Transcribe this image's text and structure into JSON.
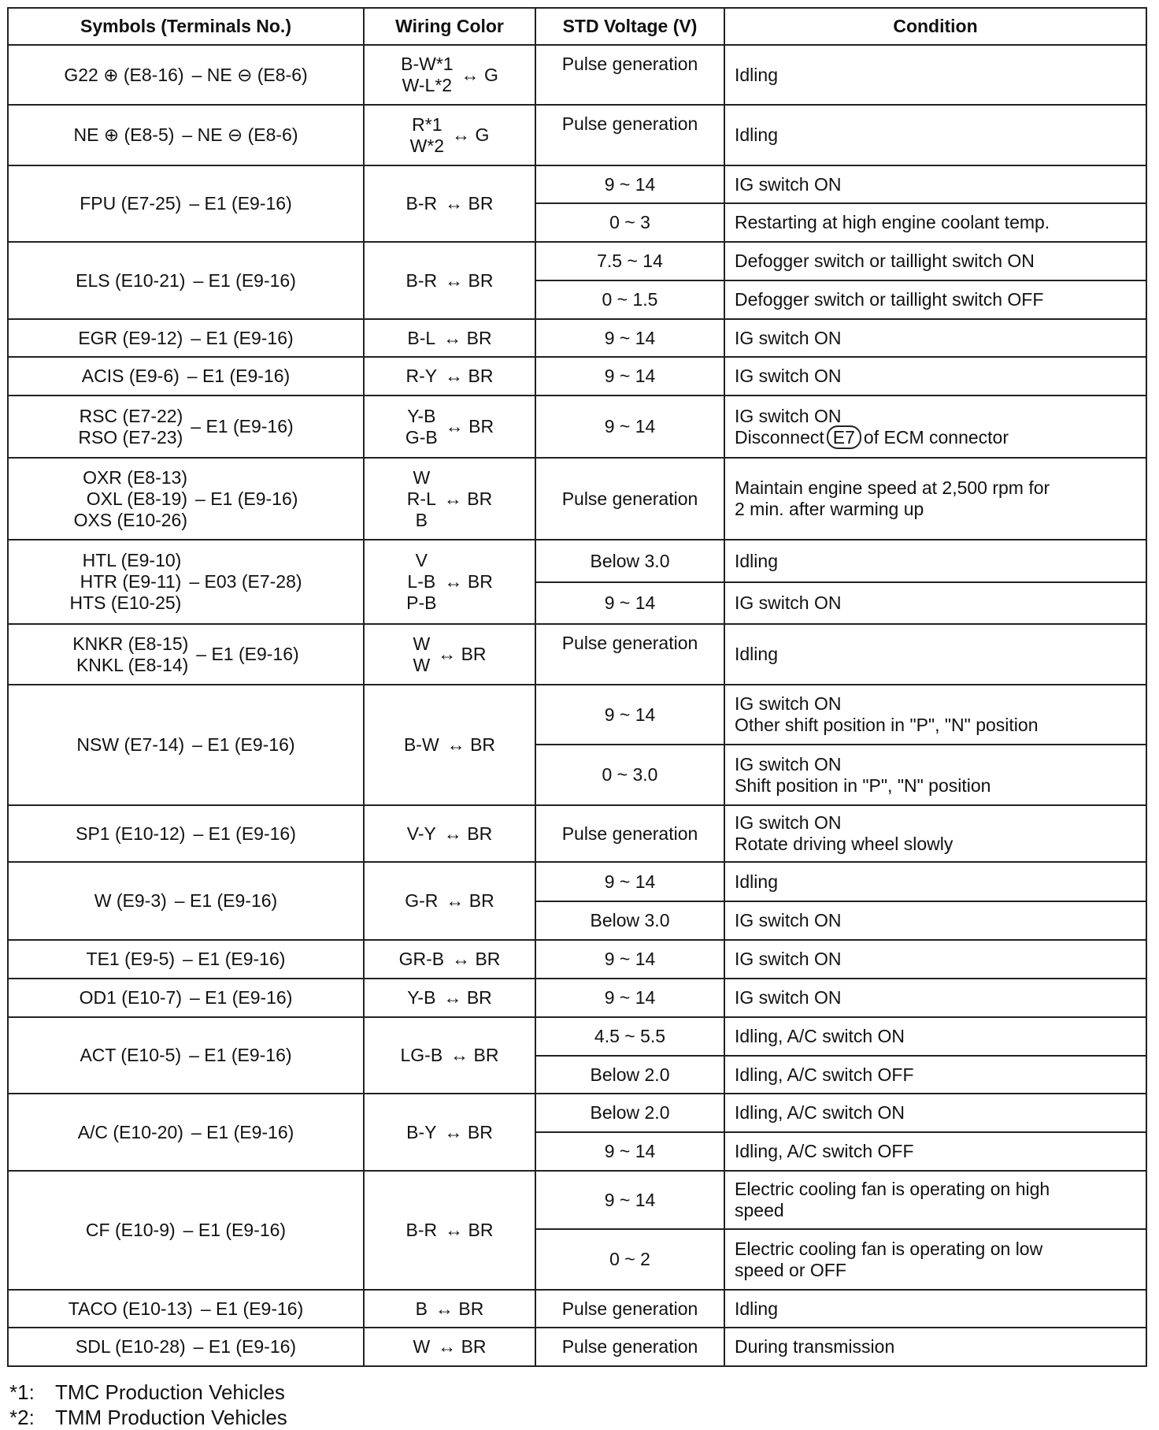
{
  "headers": [
    "Symbols (Terminals No.)",
    "Wiring Color",
    "STD Voltage (V)",
    "Condition"
  ],
  "rows": [
    {
      "sym": [
        "G22 ⊕ (E8-16)"
      ],
      "sym_to": "– NE ⊖ (E8-6)",
      "wire": [
        "B-W*1",
        "W-L*2"
      ],
      "wire_to": "↔ G",
      "top": true,
      "subs": [
        {
          "v": "Pulse generation",
          "c": [
            "Idling"
          ],
          "h": 76
        }
      ]
    },
    {
      "sym": [
        "NE ⊕ (E8-5)"
      ],
      "sym_to": "– NE ⊖ (E8-6)",
      "wire": [
        "R*1",
        "W*2"
      ],
      "wire_to": "↔ G",
      "top": true,
      "subs": [
        {
          "v": "Pulse generation",
          "c": [
            "Idling"
          ],
          "h": 77
        }
      ]
    },
    {
      "sym": [
        "FPU (E7-25)"
      ],
      "sym_to": "– E1 (E9-16)",
      "wire": [
        "B-R"
      ],
      "wire_to": "↔ BR",
      "subs": [
        {
          "v": "9 ~ 14",
          "c": [
            "IG switch ON"
          ],
          "h": 48
        },
        {
          "v": "0 ~ 3",
          "c": [
            "Restarting at high engine coolant temp."
          ],
          "h": 49
        }
      ]
    },
    {
      "sym": [
        "ELS (E10-21)"
      ],
      "sym_to": "– E1 (E9-16)",
      "wire": [
        "B-R"
      ],
      "wire_to": "↔ BR",
      "subs": [
        {
          "v": "7.5 ~ 14",
          "c": [
            "Defogger switch or taillight switch ON"
          ],
          "h": 49
        },
        {
          "v": "0 ~ 1.5",
          "c": [
            "Defogger switch or taillight switch OFF"
          ],
          "h": 49
        }
      ]
    },
    {
      "sym": [
        "EGR (E9-12)"
      ],
      "sym_to": "– E1 (E9-16)",
      "wire": [
        "B-L"
      ],
      "wire_to": "↔ BR",
      "subs": [
        {
          "v": "9 ~ 14",
          "c": [
            "IG switch ON"
          ],
          "h": 48
        }
      ]
    },
    {
      "sym": [
        "ACIS (E9-6)"
      ],
      "sym_to": "– E1 (E9-16)",
      "wire": [
        "R-Y"
      ],
      "wire_to": "↔ BR",
      "subs": [
        {
          "v": "9 ~ 14",
          "c": [
            "IG switch ON"
          ],
          "h": 49
        }
      ]
    },
    {
      "sym": [
        "RSC (E7-22)",
        "RSO (E7-23)"
      ],
      "sym_to": "– E1 (E9-16)",
      "wire": [
        "Y-B",
        "G-B"
      ],
      "wire_to": "↔ BR",
      "subs": [
        {
          "v": "9 ~ 14",
          "c": [
            "IG switch ON"
          ],
          "boxed": {
            "pre": "Disconnect",
            "box": "E7",
            "post": "of ECM connector"
          },
          "h": 79
        }
      ]
    },
    {
      "sym": [
        "OXR (E8-13)",
        "OXL (E8-19)",
        "OXS (E10-26)"
      ],
      "sym_to": "– E1 (E9-16)",
      "wire": [
        "W",
        "R-L",
        "B"
      ],
      "wire_to": "↔ BR",
      "subs": [
        {
          "v": "Pulse generation",
          "c": [
            "Maintain engine speed at 2,500 rpm for",
            "2 min. after warming up"
          ],
          "h": 104
        }
      ]
    },
    {
      "sym": [
        "HTL (E9-10)",
        "HTR (E9-11)",
        "HTS (E10-25)"
      ],
      "sym_to": "– E03 (E7-28)",
      "wire": [
        "V",
        "L-B",
        "P-B"
      ],
      "wire_to": "↔ BR",
      "subs": [
        {
          "v": "Below 3.0",
          "c": [
            "Idling"
          ],
          "h": 54
        },
        {
          "v": "9 ~ 14",
          "c": [
            "IG switch ON"
          ],
          "h": 53
        }
      ]
    },
    {
      "sym": [
        "KNKR (E8-15)",
        "KNKL (E8-14)"
      ],
      "sym_to": "– E1 (E9-16)",
      "wire": [
        "W",
        "W"
      ],
      "wire_to": "↔ BR",
      "top": true,
      "subs": [
        {
          "v": "Pulse generation",
          "c": [
            "Idling"
          ],
          "h": 77
        }
      ]
    },
    {
      "sym": [
        "NSW (E7-14)"
      ],
      "sym_to": "– E1 (E9-16)",
      "wire": [
        "B-W"
      ],
      "wire_to": "↔ BR",
      "subs": [
        {
          "v": "9 ~ 14",
          "c": [
            "IG switch ON",
            "Other shift position in \"P\", \"N\" position"
          ],
          "h": 76
        },
        {
          "v": "0 ~ 3.0",
          "c": [
            "IG switch ON",
            "Shift position in \"P\", \"N\" position"
          ],
          "h": 77
        }
      ]
    },
    {
      "sym": [
        "SP1 (E10-12)"
      ],
      "sym_to": "– E1 (E9-16)",
      "wire": [
        "V-Y"
      ],
      "wire_to": "↔ BR",
      "subs": [
        {
          "v": "Pulse generation",
          "c": [
            "IG switch ON",
            "Rotate driving wheel slowly"
          ],
          "h": 72
        }
      ]
    },
    {
      "sym": [
        "W (E9-3)"
      ],
      "sym_to": "– E1 (E9-16)",
      "wire": [
        "G-R"
      ],
      "wire_to": "↔ BR",
      "subs": [
        {
          "v": "9 ~ 14",
          "c": [
            "Idling"
          ],
          "h": 50
        },
        {
          "v": "Below 3.0",
          "c": [
            "IG switch ON"
          ],
          "h": 49
        }
      ]
    },
    {
      "sym": [
        "TE1 (E9-5)"
      ],
      "sym_to": "– E1 (E9-16)",
      "wire": [
        "GR-B"
      ],
      "wire_to": "↔ BR",
      "subs": [
        {
          "v": "9 ~ 14",
          "c": [
            "IG switch ON"
          ],
          "h": 49
        }
      ]
    },
    {
      "sym": [
        "OD1 (E10-7)"
      ],
      "sym_to": "– E1 (E9-16)",
      "wire": [
        "Y-B"
      ],
      "wire_to": "↔ BR",
      "subs": [
        {
          "v": "9 ~ 14",
          "c": [
            "IG switch ON"
          ],
          "h": 49
        }
      ]
    },
    {
      "sym": [
        "ACT (E10-5)"
      ],
      "sym_to": "– E1 (E9-16)",
      "wire": [
        "LG-B"
      ],
      "wire_to": "↔ BR",
      "subs": [
        {
          "v": "4.5 ~ 5.5",
          "c": [
            "Idling, A/C switch ON"
          ],
          "h": 49
        },
        {
          "v": "Below 2.0",
          "c": [
            "Idling, A/C switch OFF"
          ],
          "h": 48
        }
      ]
    },
    {
      "sym": [
        "A/C (E10-20)"
      ],
      "sym_to": "– E1 (E9-16)",
      "wire": [
        "B-Y"
      ],
      "wire_to": "↔ BR",
      "subs": [
        {
          "v": "Below 2.0",
          "c": [
            "Idling, A/C switch ON"
          ],
          "h": 49
        },
        {
          "v": "9 ~ 14",
          "c": [
            "Idling, A/C switch OFF"
          ],
          "h": 49
        }
      ]
    },
    {
      "sym": [
        "CF (E10-9)"
      ],
      "sym_to": "– E1 (E9-16)",
      "wire": [
        "B-R"
      ],
      "wire_to": "↔ BR",
      "subs": [
        {
          "v": "9 ~ 14",
          "c": [
            "Electric cooling fan is operating on high",
            "speed"
          ],
          "h": 74
        },
        {
          "v": "0 ~ 2",
          "c": [
            "Electric cooling fan is operating on low",
            "speed or OFF"
          ],
          "h": 77
        }
      ]
    },
    {
      "sym": [
        "TACO (E10-13)"
      ],
      "sym_to": "– E1 (E9-16)",
      "wire": [
        "B"
      ],
      "wire_to": "↔ BR",
      "subs": [
        {
          "v": "Pulse generation",
          "c": [
            "Idling"
          ],
          "h": 48
        }
      ]
    },
    {
      "sym": [
        "SDL (E10-28)"
      ],
      "sym_to": "– E1 (E9-16)",
      "wire": [
        "W"
      ],
      "wire_to": "↔ BR",
      "subs": [
        {
          "v": "Pulse generation",
          "c": [
            "During transmission"
          ],
          "h": 49
        }
      ]
    }
  ],
  "footnotes": [
    {
      "mark": "*1:",
      "text": "TMC Production Vehicles"
    },
    {
      "mark": "*2:",
      "text": "TMM Production Vehicles"
    }
  ]
}
